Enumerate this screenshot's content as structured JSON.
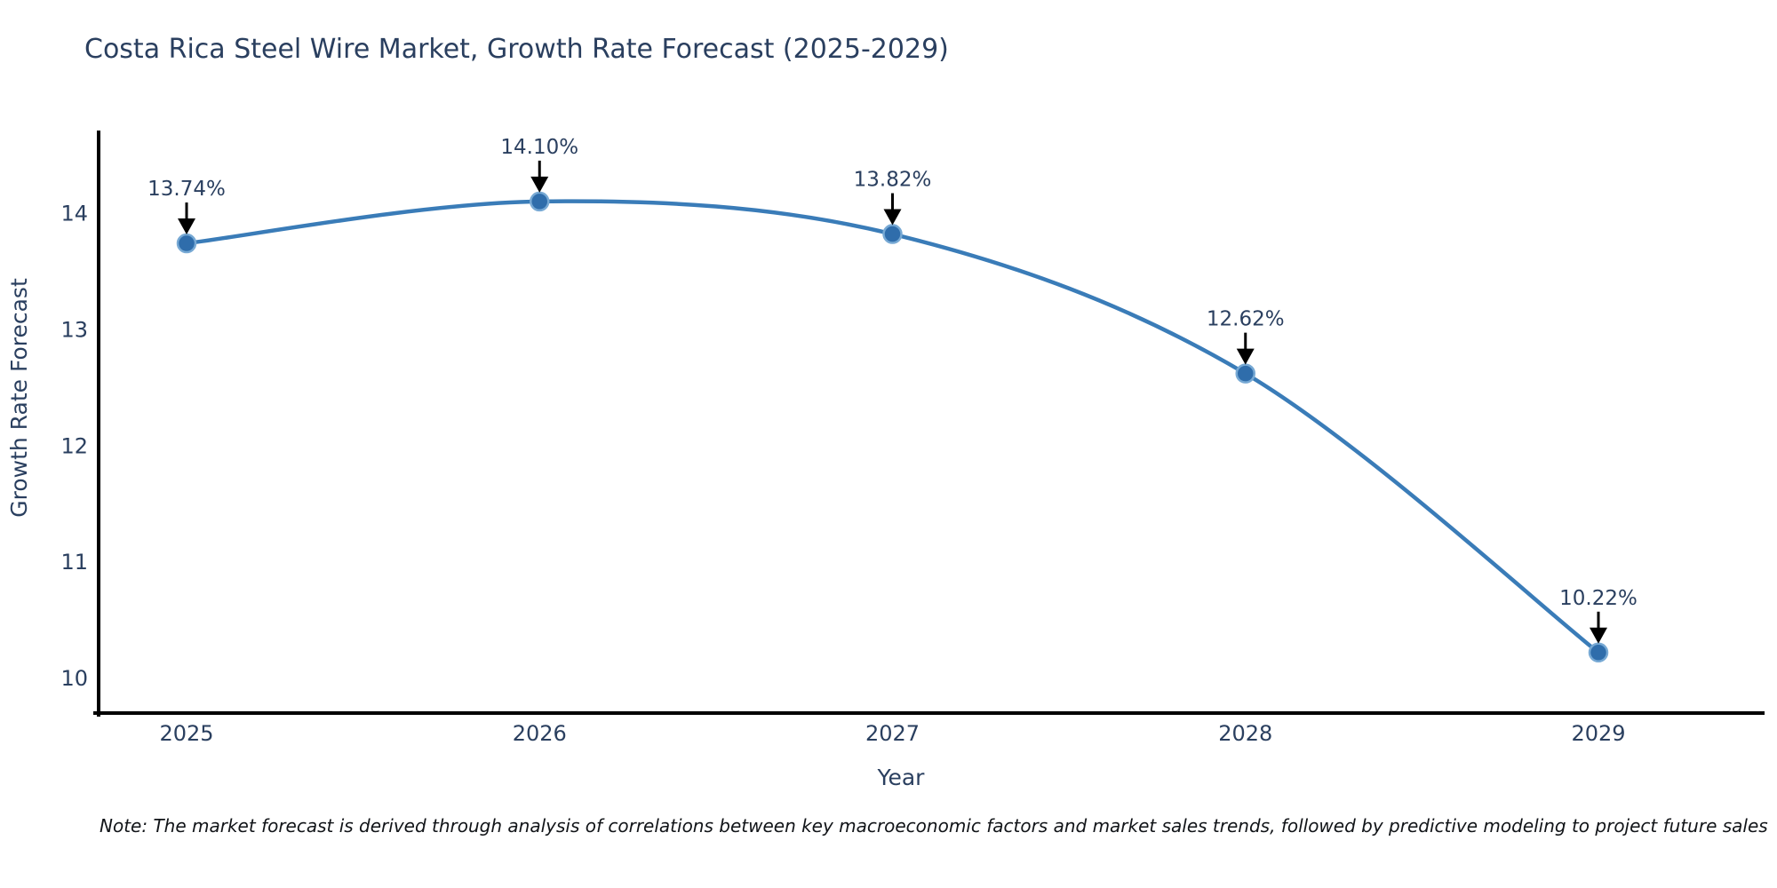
{
  "title": "Costa Rica Steel Wire Market, Growth Rate Forecast (2025-2029)",
  "note": "Note: The market forecast is derived through analysis of correlations between key macroeconomic factors and market sales trends, followed by predictive modeling to project future sales",
  "colors": {
    "background": "#ffffff",
    "title_text": "#2a3f5f",
    "tick_text": "#2a3f5f",
    "axis_line": "#000000",
    "line": "#3a7cb8",
    "marker_fill": "#2f6dab",
    "marker_edge": "#77a9d4",
    "annotation_text": "#2a3f5f",
    "annotation_arrow": "#000000",
    "note_text": "#111418"
  },
  "chart_data": {
    "type": "line",
    "title": "Costa Rica Steel Wire Market, Growth Rate Forecast (2025-2029)",
    "x": [
      2025,
      2026,
      2027,
      2028,
      2029
    ],
    "xticks": [
      "2025",
      "2026",
      "2027",
      "2028",
      "2029"
    ],
    "series": [
      {
        "name": "Growth Rate Forecast",
        "values": [
          13.74,
          14.1,
          13.82,
          12.62,
          10.22
        ]
      }
    ],
    "data_labels": [
      "13.74%",
      "14.10%",
      "13.82%",
      "12.62%",
      "10.22%"
    ],
    "xlabel": "Year",
    "ylabel": "Growth Rate Forecast",
    "yticks": [
      10,
      11,
      12,
      13,
      14
    ],
    "ylim": [
      9.69,
      14.7
    ],
    "grid": false,
    "legend": "none",
    "line_shape": "spline",
    "annotations": "black-down-arrows-to-points"
  }
}
